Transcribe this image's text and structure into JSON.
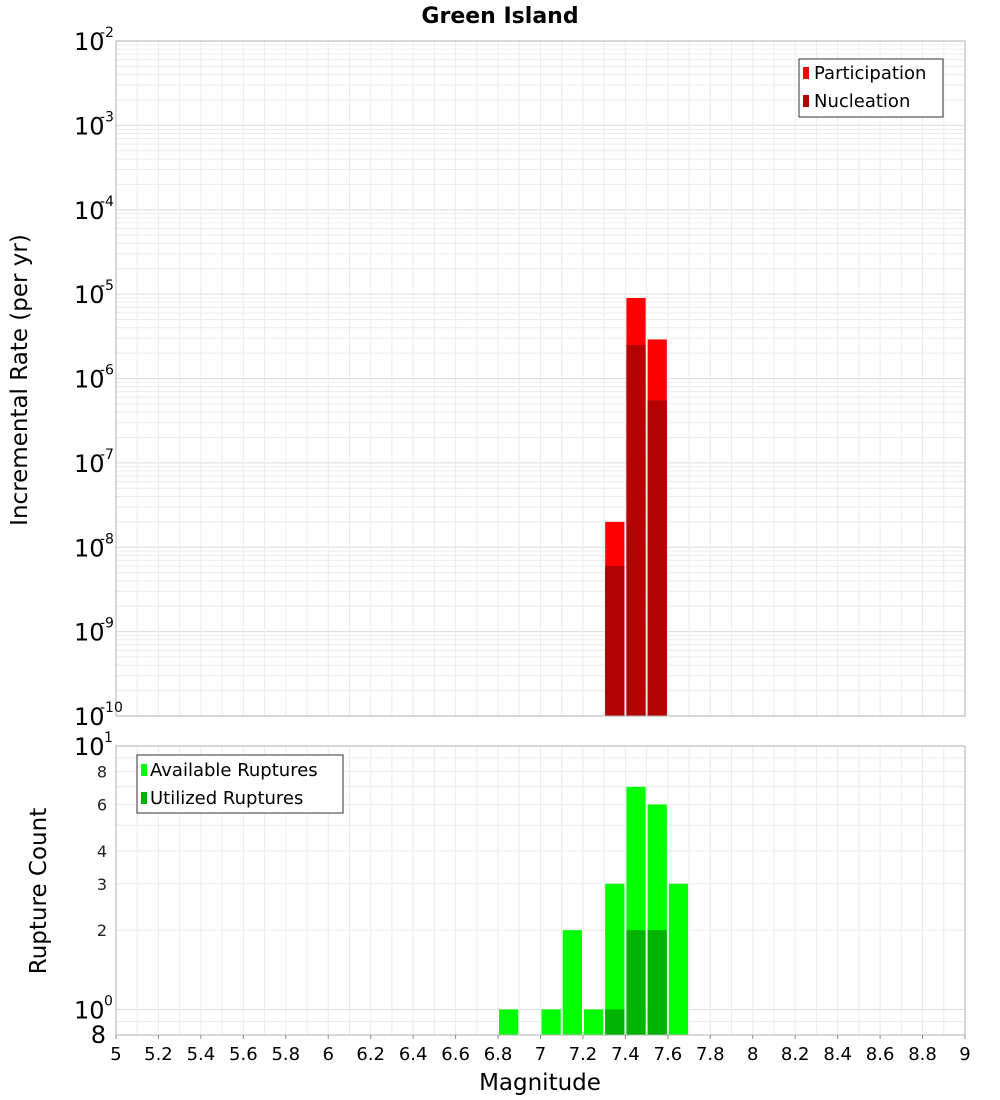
{
  "chart_data": [
    {
      "type": "bar",
      "title": "Green Island",
      "xlabel": "",
      "ylabel": "Incremental Rate (per yr)",
      "xlim": [
        5,
        9
      ],
      "ylim": [
        1e-10,
        0.01
      ],
      "yscale": "log",
      "y_tick_exponents": [
        -10,
        -9,
        -8,
        -7,
        -6,
        -5,
        -4,
        -3,
        -2
      ],
      "grid": true,
      "legend": "top-right",
      "bar_width": 0.1,
      "series": [
        {
          "name": "Participation",
          "color": "#ff0000",
          "x": [
            7.35,
            7.45,
            7.55
          ],
          "values": [
            2e-08,
            9e-06,
            2.9e-06
          ]
        },
        {
          "name": "Nucleation",
          "color": "#b30000",
          "x": [
            7.35,
            7.45,
            7.55
          ],
          "values": [
            6e-09,
            2.5e-06,
            5.5e-07
          ]
        }
      ]
    },
    {
      "type": "bar",
      "xlabel": "Magnitude",
      "ylabel": "Rupture Count",
      "xlim": [
        5,
        9
      ],
      "ylim": [
        0.8,
        10
      ],
      "yscale": "log",
      "x_ticks": [
        "5",
        "5.2",
        "5.4",
        "5.6",
        "5.8",
        "6",
        "6.2",
        "6.4",
        "6.6",
        "6.8",
        "7",
        "7.2",
        "7.4",
        "7.6",
        "7.8",
        "8",
        "8.2",
        "8.4",
        "8.6",
        "8.8",
        "9"
      ],
      "y_major_labels": [
        {
          "value": 1,
          "base": "10",
          "exp": "0"
        },
        {
          "value": 10,
          "base": "10",
          "exp": "1"
        }
      ],
      "y_minor_labels": [
        {
          "value": 0.8,
          "label": "8",
          "big": true
        },
        {
          "value": 2,
          "label": "2"
        },
        {
          "value": 3,
          "label": "3"
        },
        {
          "value": 4,
          "label": "4"
        },
        {
          "value": 6,
          "label": "6"
        },
        {
          "value": 8,
          "label": "8"
        }
      ],
      "grid": true,
      "legend": "top-left",
      "bar_width": 0.1,
      "series": [
        {
          "name": "Available Ruptures",
          "color": "#00ff00",
          "x": [
            6.85,
            7.05,
            7.15,
            7.25,
            7.35,
            7.45,
            7.55,
            7.65
          ],
          "values": [
            1,
            1,
            2,
            1,
            3,
            7,
            6,
            3
          ]
        },
        {
          "name": "Utilized Ruptures",
          "color": "#00b300",
          "x": [
            7.35,
            7.45,
            7.55
          ],
          "values": [
            1,
            2,
            2
          ]
        }
      ]
    }
  ]
}
